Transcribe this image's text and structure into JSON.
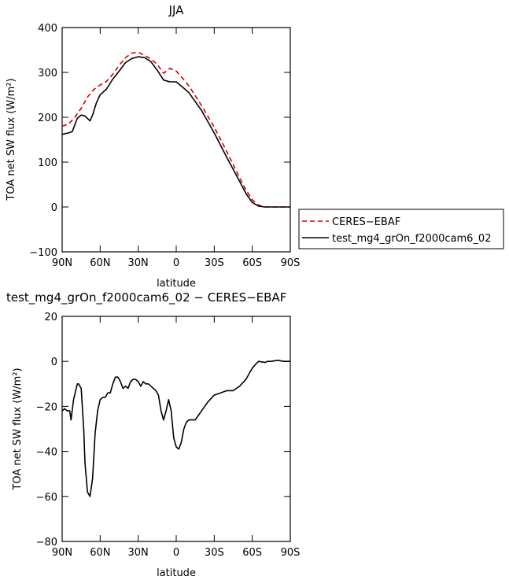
{
  "chart_data": [
    {
      "type": "line",
      "title": "JJA",
      "xlabel": "latitude",
      "ylabel": "TOA net SW flux (W/m²)",
      "ylim": [
        -100,
        400
      ],
      "xlim": [
        90,
        -90
      ],
      "x_ticks": [
        {
          "value": 90,
          "label": "90N"
        },
        {
          "value": 60,
          "label": "60N"
        },
        {
          "value": 30,
          "label": "30N"
        },
        {
          "value": 0,
          "label": "0"
        },
        {
          "value": -30,
          "label": "30S"
        },
        {
          "value": -60,
          "label": "60S"
        },
        {
          "value": -90,
          "label": "90S"
        }
      ],
      "y_ticks": [
        {
          "value": -100,
          "label": "−100"
        },
        {
          "value": 0,
          "label": "0"
        },
        {
          "value": 100,
          "label": "100"
        },
        {
          "value": 200,
          "label": "200"
        },
        {
          "value": 300,
          "label": "300"
        },
        {
          "value": 400,
          "label": "400"
        }
      ],
      "legend_position": "right",
      "series": [
        {
          "name": "CERES−EBAF",
          "color": "#d40000",
          "dash": true,
          "x": [
            90,
            85,
            80,
            75,
            70,
            65,
            60,
            55,
            50,
            45,
            40,
            35,
            30,
            25,
            20,
            15,
            10,
            5,
            0,
            -5,
            -10,
            -20,
            -30,
            -40,
            -50,
            -55,
            -60,
            -65,
            -70,
            -80,
            -90
          ],
          "y": [
            180,
            185,
            200,
            220,
            245,
            262,
            272,
            280,
            296,
            316,
            333,
            343,
            345,
            338,
            330,
            318,
            298,
            309,
            303,
            287,
            270,
            226,
            178,
            123,
            65,
            38,
            16,
            4,
            0,
            0,
            0
          ]
        },
        {
          "name": "test_mg4_grOn_f2000cam6_02",
          "color": "#000000",
          "dash": false,
          "x": [
            90,
            85,
            82,
            78,
            75,
            72,
            68,
            66,
            63,
            60,
            55,
            50,
            45,
            40,
            35,
            30,
            25,
            20,
            15,
            10,
            5,
            0,
            -5,
            -10,
            -20,
            -30,
            -40,
            -50,
            -55,
            -60,
            -65,
            -70,
            -80,
            -90
          ],
          "y": [
            162,
            165,
            168,
            198,
            205,
            203,
            192,
            205,
            232,
            250,
            263,
            285,
            303,
            322,
            331,
            335,
            333,
            324,
            305,
            283,
            279,
            279,
            267,
            255,
            215,
            165,
            110,
            57,
            30,
            10,
            2,
            0,
            0,
            0
          ]
        }
      ]
    },
    {
      "type": "line",
      "title": "test_mg4_grOn_f2000cam6_02 − CERES−EBAF",
      "xlabel": "latitude",
      "ylabel": "TOA net SW flux (W/m²)",
      "ylim": [
        -80,
        20
      ],
      "xlim": [
        90,
        -90
      ],
      "x_ticks": [
        {
          "value": 90,
          "label": "90N"
        },
        {
          "value": 60,
          "label": "60N"
        },
        {
          "value": 30,
          "label": "30N"
        },
        {
          "value": 0,
          "label": "0"
        },
        {
          "value": -30,
          "label": "30S"
        },
        {
          "value": -60,
          "label": "60S"
        },
        {
          "value": -90,
          "label": "90S"
        }
      ],
      "y_ticks": [
        {
          "value": -80,
          "label": "−80"
        },
        {
          "value": -60,
          "label": "−60"
        },
        {
          "value": -40,
          "label": "−40"
        },
        {
          "value": -20,
          "label": "−20"
        },
        {
          "value": 0,
          "label": "0"
        },
        {
          "value": 20,
          "label": "20"
        }
      ],
      "series": [
        {
          "color": "#000000",
          "dash": false,
          "x": [
            90,
            88,
            86,
            84,
            83,
            81,
            78,
            77,
            75,
            73,
            72,
            70,
            68,
            66,
            65,
            64,
            62,
            60,
            58,
            56,
            54,
            52,
            50,
            48,
            46,
            44,
            42,
            40,
            38,
            36,
            34,
            32,
            30,
            28,
            26,
            24,
            22,
            20,
            18,
            16,
            14,
            12,
            10,
            8,
            6,
            4,
            2,
            0,
            -2,
            -4,
            -6,
            -8,
            -10,
            -12,
            -15,
            -20,
            -25,
            -30,
            -35,
            -40,
            -45,
            -50,
            -55,
            -58,
            -60,
            -63,
            -65,
            -70,
            -72,
            -75,
            -80,
            -85,
            -90
          ],
          "y": [
            -22,
            -21,
            -22,
            -22,
            -26,
            -17,
            -10,
            -10,
            -12,
            -30,
            -45,
            -58,
            -60,
            -52,
            -42,
            -32,
            -22,
            -17,
            -16,
            -16,
            -14,
            -14,
            -10,
            -7,
            -7,
            -9,
            -12,
            -11,
            -12,
            -9,
            -8,
            -8,
            -9,
            -11,
            -9,
            -10,
            -10,
            -11,
            -12,
            -13,
            -15,
            -22,
            -26,
            -22,
            -17,
            -22,
            -34,
            -38,
            -39,
            -36,
            -30,
            -27,
            -26,
            -26,
            -26,
            -22,
            -18,
            -15,
            -14,
            -13,
            -13,
            -11,
            -8,
            -5,
            -3,
            -1,
            0,
            -0.5,
            0,
            0,
            0.5,
            0,
            0
          ]
        }
      ]
    }
  ]
}
